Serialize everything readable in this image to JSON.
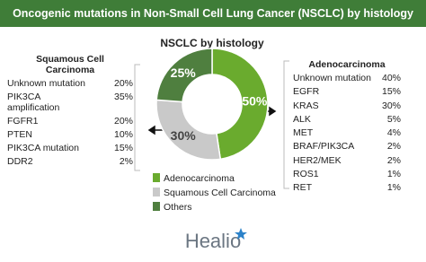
{
  "chart_data": {
    "type": "pie",
    "title": "Oncogenic mutations in Non-Small Cell Lung Cancer (NSCLC) by histology",
    "subtitle": "NSCLC by histology",
    "categories": [
      "Adenocarcinoma",
      "Squamous Cell Carcinoma",
      "Others"
    ],
    "values": [
      50,
      30,
      25
    ],
    "value_labels": [
      "50%",
      "30%",
      "25%"
    ],
    "colors": [
      "#6aab2e",
      "#c9c9c9",
      "#4f7f3f"
    ],
    "donut": true
  },
  "squamous_table": {
    "header": "Squamous Cell Carcinoma",
    "rows": [
      [
        "Unknown mutation",
        "20%"
      ],
      [
        "PIK3CA amplification",
        "35%"
      ],
      [
        "FGFR1",
        "20%"
      ],
      [
        "PTEN",
        "10%"
      ],
      [
        "PIK3CA mutation",
        "15%"
      ],
      [
        "DDR2",
        "2%"
      ]
    ]
  },
  "adeno_table": {
    "header": "Adenocarcinoma",
    "rows": [
      [
        "Unknown mutation",
        "40%"
      ],
      [
        "EGFR",
        "15%"
      ],
      [
        "KRAS",
        "30%"
      ],
      [
        "ALK",
        "5%"
      ],
      [
        "MET",
        "4%"
      ],
      [
        "BRAF/PIK3CA",
        "2%"
      ],
      [
        "HER2/MEK",
        "2%"
      ],
      [
        "ROS1",
        "1%"
      ],
      [
        "RET",
        "1%"
      ]
    ]
  },
  "footer": {
    "logo": "Healio"
  }
}
